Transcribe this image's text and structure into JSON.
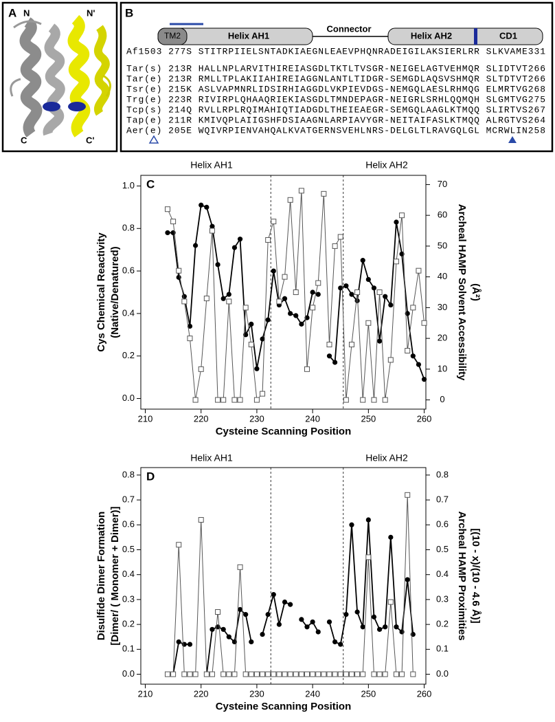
{
  "panel_a": {
    "label": "A",
    "termini": [
      "N",
      "N'",
      "C",
      "C'"
    ]
  },
  "panel_b": {
    "label": "B",
    "domains": [
      "TM2",
      "Helix AH1",
      "Connector",
      "Helix AH2",
      "CD1"
    ],
    "rows": [
      "Af1503 277S STITRPIIELSNTADKIAEGNLEAEVPHQNRADEIGILAKSIERLRR SLKVAME331",
      "Tar(s) 213R HALLNPLARVITHIREIASGDLTKTLTVSGR-NEIGELAGTVEHMQR SLIDTVT266",
      "Tar(e) 213R RMLLTPLAKIIAHIREIAGGNLANTLTIDGR-SEMGDLAQSVSHMQR SLTDTVT266",
      "Tsr(e) 215K ASLVAPMNRLIDSIRHIAGGDLVKPIEVDGS-NEMGQLAESLRHMQG ELMRTVG268",
      "Trg(e) 223R RIVIRPLQHAAQRIEKIASGDLTMNDEPAGR-NEIGRLSRHLQQMQH SLGMTVG275",
      "Tcp(s) 214Q RVLLRPLRQIMAHIQTIADGDLTHEIEAEGR-SEMGQLAAGLKTMQQ SLIRTVS267",
      "Tap(e) 211R KMIVQPLAIIGSHFDSIAAGNLARPIAVYGR-NEITAIFASLKTMQQ ALRGTVS264",
      "Aer(e) 205E WQIVRPIENVAHQALKVATGERNSVEHLNRS-DELGLTLRAVGQLGL MCRWLIN258"
    ]
  },
  "chart_data": [
    {
      "type": "line",
      "panel_label": "C",
      "annotations": [
        "Helix AH1",
        "Helix AH2"
      ],
      "dividers": [
        232.5,
        245.5
      ],
      "xlabel": "Cysteine Scanning Position",
      "ylabel": [
        "Cys Chemical Reactivity",
        "(Native/Denatured)"
      ],
      "y2label": [
        "Archeal HAMP Solvent Accessibility",
        "(Å²)"
      ],
      "xlim": [
        209.2,
        260.3
      ],
      "xticks": [
        210,
        220,
        230,
        240,
        250,
        260
      ],
      "ylim": [
        -0.05,
        1.05
      ],
      "yticks": [
        {
          "value": 0,
          "label": "0.0"
        },
        0.2,
        0.4,
        0.6,
        0.8,
        {
          "value": 1,
          "label": "1.0"
        }
      ],
      "y2lim": [
        -3,
        73
      ],
      "y2ticks": [
        0,
        10,
        20,
        30,
        40,
        50,
        60,
        70
      ],
      "x": [
        214,
        215,
        216,
        217,
        218,
        219,
        220,
        221,
        222,
        223,
        224,
        225,
        226,
        227,
        228,
        229,
        230,
        231,
        232,
        233,
        234,
        235,
        236,
        237,
        238,
        239,
        240,
        241,
        242,
        243,
        244,
        245,
        246,
        247,
        248,
        249,
        250,
        251,
        252,
        253,
        254,
        255,
        256,
        257,
        258,
        259,
        260
      ],
      "series": [
        {
          "marker": "circle",
          "color": "#000000",
          "values": [
            0.78,
            0.78,
            0.57,
            0.48,
            0.34,
            0.72,
            0.91,
            0.9,
            0.81,
            0.63,
            0.47,
            0.49,
            0.71,
            0.75,
            0.3,
            0.35,
            0.14,
            0.28,
            0.37,
            0.6,
            0.44,
            0.47,
            0.4,
            0.39,
            0.35,
            0.38,
            0.5,
            0.49,
            null,
            0.2,
            0.17,
            0.52,
            0.53,
            0.49,
            0.46,
            0.65,
            0.56,
            0.52,
            0.27,
            0.48,
            0.44,
            0.83,
            0.68,
            0.4,
            0.2,
            0.16,
            0.09
          ]
        },
        {
          "marker": "square",
          "color": "#555555",
          "axis": "y2",
          "values": [
            62,
            58,
            42,
            32,
            20,
            0,
            10,
            33,
            55,
            0,
            0,
            32,
            0,
            0,
            30,
            18,
            0,
            2,
            52,
            58,
            32,
            40,
            65,
            35,
            68,
            10,
            30,
            38,
            67,
            18,
            50,
            53,
            0,
            18,
            35,
            0,
            25,
            0,
            35,
            0,
            13,
            45,
            60,
            16,
            30,
            42,
            25
          ]
        }
      ]
    },
    {
      "type": "line",
      "panel_label": "D",
      "annotations": [
        "Helix AH1",
        "Helix AH2"
      ],
      "dividers": [
        232.5,
        245.5
      ],
      "xlabel": "Cysteine Scanning Position",
      "ylabel": [
        "Disulfide Dimer Formation",
        "[Dimer/ ( Monomer + Dimer)]"
      ],
      "y2label": [
        "Archeal HAMP Proximities",
        "[(10 - x)/(10 - 4.6 Å)]"
      ],
      "xlim": [
        209.2,
        260.3
      ],
      "xticks": [
        210,
        220,
        230,
        240,
        250,
        260
      ],
      "ylim": [
        -0.04,
        0.83
      ],
      "yticks": [
        {
          "value": 0,
          "label": "0.0"
        },
        0.1,
        0.2,
        0.3,
        0.4,
        0.5,
        0.6,
        0.7,
        0.8
      ],
      "y2lim": [
        -0.04,
        0.83
      ],
      "y2ticks": [
        {
          "value": 0,
          "label": "0.0"
        },
        0.1,
        0.2,
        0.3,
        0.4,
        0.5,
        0.6,
        0.7,
        0.8
      ],
      "x": [
        214,
        215,
        216,
        217,
        218,
        219,
        220,
        221,
        222,
        223,
        224,
        225,
        226,
        227,
        228,
        229,
        230,
        231,
        232,
        233,
        234,
        235,
        236,
        237,
        238,
        239,
        240,
        241,
        242,
        243,
        244,
        245,
        246,
        247,
        248,
        249,
        250,
        251,
        252,
        253,
        254,
        255,
        256,
        257,
        258
      ],
      "series": [
        {
          "marker": "circle",
          "color": "#000000",
          "values": [
            0,
            0,
            0.13,
            0.12,
            0.12,
            null,
            null,
            0,
            0.18,
            0.19,
            0.18,
            0.15,
            0.13,
            0.26,
            0.24,
            0.13,
            null,
            0.16,
            0.24,
            0.32,
            0.2,
            0.29,
            0.28,
            null,
            0.22,
            0.19,
            0.21,
            0.17,
            null,
            0.21,
            0.13,
            0.12,
            0.24,
            0.6,
            0.25,
            0.19,
            0.62,
            0.23,
            0.18,
            0.19,
            0.55,
            0.19,
            0.17,
            0.38,
            0.16
          ]
        },
        {
          "marker": "square",
          "color": "#555555",
          "axis": "y2",
          "values": [
            0,
            0,
            0.52,
            0,
            0,
            0,
            0.62,
            0,
            0,
            0.25,
            0,
            0,
            0,
            0.43,
            0,
            0,
            0,
            0,
            0,
            0,
            0,
            0,
            0,
            0,
            0,
            0,
            0,
            0,
            0,
            0,
            0,
            0,
            0,
            0,
            0,
            0,
            0.47,
            0,
            0,
            0,
            0.29,
            0,
            0,
            0.72,
            0
          ]
        }
      ]
    }
  ]
}
